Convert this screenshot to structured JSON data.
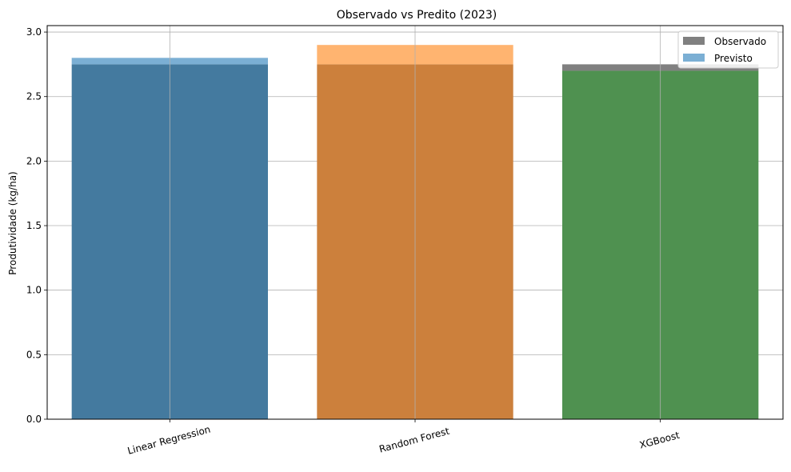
{
  "chart_data": {
    "type": "bar",
    "title": "Observado vs Predito (2023)",
    "xlabel": "",
    "ylabel": "Produtividade (kg/ha)",
    "categories": [
      "Linear Regression",
      "Random Forest",
      "XGBoost"
    ],
    "ylim": [
      0,
      3.05
    ],
    "yticks": [
      "0.0",
      "0.5",
      "1.0",
      "1.5",
      "2.0",
      "2.5",
      "3.0"
    ],
    "grid": true,
    "legend_position": "top-right",
    "series": [
      {
        "name": "Observado",
        "values": [
          2.75,
          2.75,
          2.75
        ],
        "color": "#808080"
      },
      {
        "name": "Previsto",
        "values": [
          2.8,
          2.9,
          2.7
        ],
        "colors": [
          "#1f77b4",
          "#ff7f0e",
          "#2ca02c"
        ],
        "legend_color": "#7bafd4"
      }
    ],
    "colors": {
      "overlap": [
        "#447a9f",
        "#cc803c",
        "#4f9150"
      ],
      "previsto_visible": [
        "#7bafd4",
        "#ffb470",
        "#4f9150"
      ],
      "observado_visible": "#808080"
    }
  }
}
